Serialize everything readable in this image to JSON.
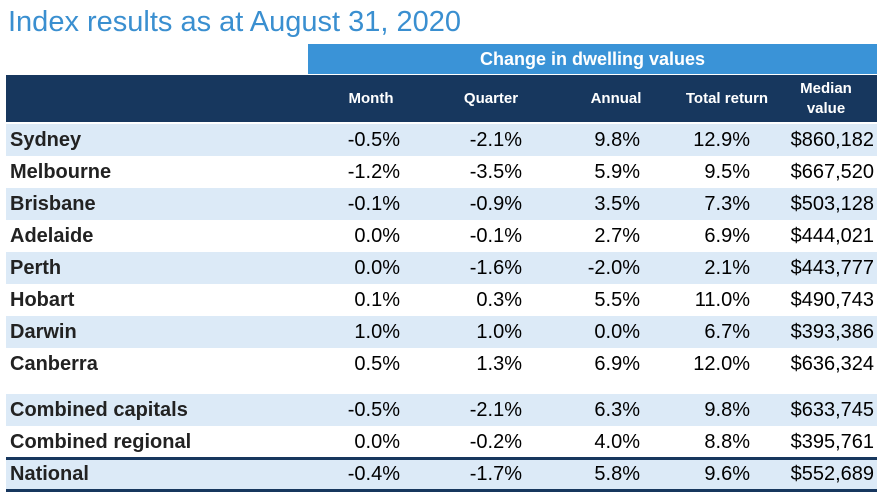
{
  "title": "Index results as at August 31, 2020",
  "group_header": "Change in dwelling values",
  "columns": {
    "month": "Month",
    "quarter": "Quarter",
    "annual": "Annual",
    "total_return": "Total return",
    "median_line1": "Median",
    "median_line2": "value"
  },
  "rows": [
    {
      "city": "Sydney",
      "month": "-0.5%",
      "quarter": "-2.1%",
      "annual": "9.8%",
      "total_return": "12.9%",
      "median": "$860,182"
    },
    {
      "city": "Melbourne",
      "month": "-1.2%",
      "quarter": "-3.5%",
      "annual": "5.9%",
      "total_return": "9.5%",
      "median": "$667,520"
    },
    {
      "city": "Brisbane",
      "month": "-0.1%",
      "quarter": "-0.9%",
      "annual": "3.5%",
      "total_return": "7.3%",
      "median": "$503,128"
    },
    {
      "city": "Adelaide",
      "month": "0.0%",
      "quarter": "-0.1%",
      "annual": "2.7%",
      "total_return": "6.9%",
      "median": "$444,021"
    },
    {
      "city": "Perth",
      "month": "0.0%",
      "quarter": "-1.6%",
      "annual": "-2.0%",
      "total_return": "2.1%",
      "median": "$443,777"
    },
    {
      "city": "Hobart",
      "month": "0.1%",
      "quarter": "0.3%",
      "annual": "5.5%",
      "total_return": "11.0%",
      "median": "$490,743"
    },
    {
      "city": "Darwin",
      "month": "1.0%",
      "quarter": "1.0%",
      "annual": "0.0%",
      "total_return": "6.7%",
      "median": "$393,386"
    },
    {
      "city": "Canberra",
      "month": "0.5%",
      "quarter": "1.3%",
      "annual": "6.9%",
      "total_return": "12.0%",
      "median": "$636,324"
    },
    {
      "city": "Combined capitals",
      "month": "-0.5%",
      "quarter": "-2.1%",
      "annual": "6.3%",
      "total_return": "9.8%",
      "median": "$633,745"
    },
    {
      "city": "Combined regional",
      "month": "0.0%",
      "quarter": "-0.2%",
      "annual": "4.0%",
      "total_return": "8.8%",
      "median": "$395,761"
    },
    {
      "city": "National",
      "month": "-0.4%",
      "quarter": "-1.7%",
      "annual": "5.8%",
      "total_return": "9.6%",
      "median": "$552,689"
    }
  ],
  "colors": {
    "title": "#3a8fd0",
    "band": "#3a93d7",
    "header": "#17375e",
    "shade": "#dceaf7"
  }
}
